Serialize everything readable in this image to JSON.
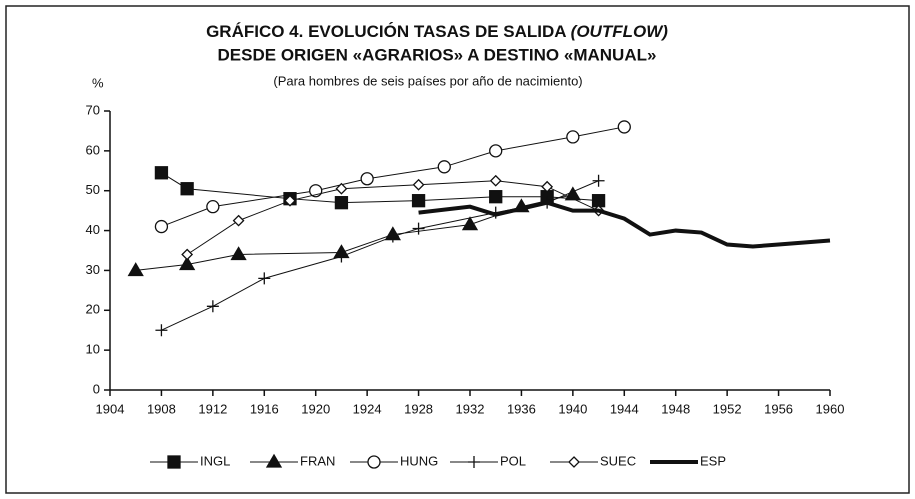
{
  "chart_data": {
    "type": "line",
    "title": "GRÁFICO 4. EVOLUCIÓN TASAS DE SALIDA",
    "title_italic": "(OUTFLOW)",
    "title_line2": "DESDE ORIGEN «AGRARIOS» A DESTINO «MANUAL»",
    "subtitle": "(Para hombres de seis países por año de nacimiento)",
    "y_label": "%",
    "xlim": [
      1904,
      1960
    ],
    "ylim": [
      0,
      70
    ],
    "xticks": [
      1904,
      1908,
      1912,
      1916,
      1920,
      1924,
      1928,
      1932,
      1936,
      1940,
      1944,
      1948,
      1952,
      1956,
      1960
    ],
    "yticks": [
      0,
      10,
      20,
      30,
      40,
      50,
      60,
      70
    ],
    "series": [
      {
        "name": "INGL",
        "color": "#111",
        "marker": "square",
        "x": [
          1908,
          1910,
          1918,
          1922,
          1928,
          1934,
          1938,
          1942
        ],
        "values": [
          54.5,
          50.5,
          48,
          47,
          47.5,
          48.5,
          48.5,
          47.5
        ]
      },
      {
        "name": "FRAN",
        "color": "#111",
        "marker": "triangle",
        "x": [
          1906,
          1910,
          1914,
          1922,
          1926,
          1932,
          1936,
          1940
        ],
        "values": [
          30,
          31.5,
          34,
          34.5,
          39,
          41.5,
          46,
          49
        ]
      },
      {
        "name": "HUNG",
        "color": "#111",
        "marker": "circle",
        "x": [
          1908,
          1912,
          1920,
          1924,
          1930,
          1934,
          1940,
          1944
        ],
        "values": [
          41,
          46,
          50,
          53,
          56,
          60,
          63.5,
          66
        ]
      },
      {
        "name": "POL",
        "color": "#111",
        "marker": "plus",
        "x": [
          1908,
          1912,
          1916,
          1922,
          1926,
          1928,
          1934,
          1938,
          1942
        ],
        "values": [
          15,
          21,
          28,
          33.5,
          38.5,
          40.5,
          44.5,
          47,
          52.5
        ]
      },
      {
        "name": "SUEC",
        "color": "#111",
        "marker": "diamond",
        "x": [
          1910,
          1914,
          1918,
          1922,
          1928,
          1934,
          1938,
          1942
        ],
        "values": [
          34,
          42.5,
          47.5,
          50.5,
          51.5,
          52.5,
          51,
          45
        ]
      },
      {
        "name": "ESP",
        "color": "#111",
        "marker": "none",
        "x": [
          1928,
          1932,
          1934,
          1938,
          1940,
          1942,
          1944,
          1946,
          1948,
          1950,
          1952,
          1954,
          1956,
          1958,
          1960
        ],
        "values": [
          44.5,
          46,
          44,
          47,
          45,
          45,
          43,
          39,
          40,
          39.5,
          36.5,
          36,
          36.5,
          37,
          37.5
        ]
      }
    ]
  }
}
